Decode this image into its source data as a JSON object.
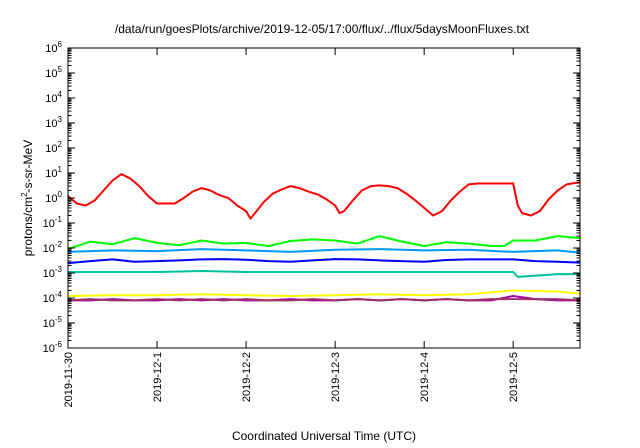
{
  "chart_data": {
    "type": "line",
    "title": "/data/run/goesPlots/archive/2019-12-05/17:00/flux/../flux/5daysMoonFluxes.txt",
    "xlabel": "Coordinated Universal Time (UTC)",
    "ylabel": "protons/cm²-s-sr-MeV",
    "ylabel_parts": [
      "protons/cm",
      "2",
      "-s-sr-MeV"
    ],
    "yscale": "log",
    "ylim": [
      1e-06,
      1000000.0
    ],
    "xlim": [
      0,
      5.75
    ],
    "x_units": "days since 2019-11-30 00:00 UTC",
    "grid": false,
    "y_ticks": [
      {
        "base": "10",
        "exp": "-6",
        "value": -6
      },
      {
        "base": "10",
        "exp": "-5",
        "value": -5
      },
      {
        "base": "10",
        "exp": "-4",
        "value": -4
      },
      {
        "base": "10",
        "exp": "-3",
        "value": -3
      },
      {
        "base": "10",
        "exp": "-2",
        "value": -2
      },
      {
        "base": "10",
        "exp": "-1",
        "value": -1
      },
      {
        "base": "10",
        "exp": "0",
        "value": 0
      },
      {
        "base": "10",
        "exp": "1",
        "value": 1
      },
      {
        "base": "10",
        "exp": "2",
        "value": 2
      },
      {
        "base": "10",
        "exp": "3",
        "value": 3
      },
      {
        "base": "10",
        "exp": "4",
        "value": 4
      },
      {
        "base": "10",
        "exp": "5",
        "value": 5
      },
      {
        "base": "10",
        "exp": "6",
        "value": 6
      }
    ],
    "x_ticks": [
      {
        "label": "2019-11-30",
        "value": 0
      },
      {
        "label": "2019-12-1",
        "value": 1
      },
      {
        "label": "2019-12-2",
        "value": 2
      },
      {
        "label": "2019-12-3",
        "value": 3
      },
      {
        "label": "2019-12-4",
        "value": 4
      },
      {
        "label": "2019-12-5",
        "value": 5
      }
    ],
    "series": [
      {
        "color": "#ff0000",
        "x": [
          0,
          0.1,
          0.2,
          0.3,
          0.4,
          0.5,
          0.6,
          0.7,
          0.8,
          0.9,
          1.0,
          1.1,
          1.2,
          1.3,
          1.4,
          1.5,
          1.6,
          1.7,
          1.8,
          1.9,
          2.0,
          2.05,
          2.1,
          2.2,
          2.3,
          2.4,
          2.5,
          2.6,
          2.7,
          2.8,
          2.9,
          3.0,
          3.05,
          3.1,
          3.2,
          3.3,
          3.4,
          3.5,
          3.6,
          3.7,
          3.8,
          3.9,
          4.0,
          4.1,
          4.2,
          4.3,
          4.4,
          4.5,
          4.6,
          4.7,
          4.8,
          4.9,
          5.0,
          5.05,
          5.1,
          5.2,
          5.3,
          5.4,
          5.5,
          5.6,
          5.7,
          5.75
        ],
        "y": [
          1.2,
          0.6,
          0.5,
          0.8,
          2,
          5,
          9,
          6,
          3,
          1.2,
          0.6,
          0.6,
          0.6,
          1,
          1.8,
          2.5,
          2,
          1.3,
          1,
          0.5,
          0.3,
          0.15,
          0.25,
          0.7,
          1.5,
          2.2,
          3,
          2.5,
          1.8,
          1.4,
          0.9,
          0.5,
          0.25,
          0.3,
          0.8,
          2,
          3,
          3.2,
          3,
          2.5,
          1.5,
          0.8,
          0.4,
          0.2,
          0.3,
          0.8,
          1.8,
          3.5,
          3.8,
          3.8,
          3.8,
          3.8,
          3.8,
          0.5,
          0.25,
          0.2,
          0.3,
          0.9,
          2,
          3.5,
          4,
          4.2
        ]
      },
      {
        "color": "#00ff00",
        "x": [
          0,
          0.25,
          0.5,
          0.75,
          1.0,
          1.25,
          1.5,
          1.75,
          2.0,
          2.25,
          2.5,
          2.75,
          3.0,
          3.25,
          3.5,
          3.75,
          4.0,
          4.25,
          4.5,
          4.75,
          4.9,
          5.0,
          5.25,
          5.5,
          5.75
        ],
        "y": [
          0.009,
          0.018,
          0.014,
          0.025,
          0.016,
          0.013,
          0.02,
          0.015,
          0.016,
          0.012,
          0.019,
          0.022,
          0.02,
          0.015,
          0.03,
          0.018,
          0.012,
          0.017,
          0.015,
          0.012,
          0.012,
          0.02,
          0.02,
          0.03,
          0.025
        ]
      },
      {
        "color": "#0099ff",
        "x": [
          0,
          0.5,
          1.0,
          1.5,
          2.0,
          2.5,
          3.0,
          3.5,
          4.0,
          4.5,
          5.0,
          5.5,
          5.75
        ],
        "y": [
          0.007,
          0.008,
          0.0075,
          0.009,
          0.008,
          0.007,
          0.0085,
          0.009,
          0.008,
          0.0085,
          0.007,
          0.008,
          0.0065
        ]
      },
      {
        "color": "#0000ff",
        "x": [
          0,
          0.25,
          0.5,
          0.75,
          1.0,
          1.25,
          1.5,
          1.75,
          2.0,
          2.25,
          2.5,
          2.75,
          3.0,
          3.25,
          3.5,
          3.75,
          4.0,
          4.25,
          4.5,
          4.75,
          5.0,
          5.25,
          5.5,
          5.75
        ],
        "y": [
          0.0025,
          0.003,
          0.0035,
          0.0028,
          0.003,
          0.0032,
          0.0035,
          0.0036,
          0.0034,
          0.003,
          0.0028,
          0.0032,
          0.0036,
          0.0035,
          0.0032,
          0.003,
          0.0028,
          0.0033,
          0.0035,
          0.0035,
          0.0035,
          0.003,
          0.0028,
          0.0026
        ]
      },
      {
        "color": "#00c0a0",
        "x": [
          0,
          0.5,
          1.0,
          1.5,
          2.0,
          2.5,
          3.0,
          3.5,
          4.0,
          4.5,
          5.0,
          5.05,
          5.5,
          5.75
        ],
        "y": [
          0.0011,
          0.0011,
          0.0011,
          0.0012,
          0.0011,
          0.0011,
          0.0011,
          0.0011,
          0.0011,
          0.0011,
          0.0011,
          0.0007,
          0.0009,
          0.0009
        ]
      },
      {
        "color": "#ffff00",
        "x": [
          0,
          0.5,
          1.0,
          1.5,
          2.0,
          2.5,
          3.0,
          3.5,
          4.0,
          4.5,
          5.0,
          5.5,
          5.75
        ],
        "y": [
          0.00012,
          0.00013,
          0.00013,
          0.00014,
          0.00013,
          0.00012,
          0.00013,
          0.00014,
          0.00013,
          0.00014,
          0.0002,
          0.00018,
          0.00015
        ]
      },
      {
        "color": "#aa00aa",
        "x": [
          0,
          0.25,
          0.5,
          0.75,
          1.0,
          1.25,
          1.5,
          1.75,
          2.0,
          2.25,
          2.5,
          2.75,
          3.0,
          3.25,
          3.5,
          3.75,
          4.0,
          4.25,
          4.5,
          4.75,
          5.0,
          5.25,
          5.5,
          5.75
        ],
        "y": [
          8e-05,
          8e-05,
          9e-05,
          8e-05,
          8e-05,
          9e-05,
          8e-05,
          9e-05,
          8e-05,
          8e-05,
          9e-05,
          8e-05,
          8e-05,
          9e-05,
          8e-05,
          9e-05,
          8e-05,
          9e-05,
          8e-05,
          8e-05,
          0.00012,
          9e-05,
          8e-05,
          8e-05
        ]
      },
      {
        "color": "#993366",
        "x": [
          0,
          0.25,
          0.5,
          0.75,
          1.0,
          1.25,
          1.5,
          1.75,
          2.0,
          2.25,
          2.5,
          2.75,
          3.0,
          3.25,
          3.5,
          3.75,
          4.0,
          4.25,
          4.5,
          4.75,
          5.0,
          5.25,
          5.5,
          5.75
        ],
        "y": [
          8e-05,
          9e-05,
          8e-05,
          8e-05,
          9e-05,
          8e-05,
          9e-05,
          8e-05,
          9e-05,
          8e-05,
          8e-05,
          9e-05,
          8e-05,
          9e-05,
          8e-05,
          9e-05,
          8e-05,
          9e-05,
          8e-05,
          9e-05,
          9e-05,
          9e-05,
          9e-05,
          8e-05
        ]
      }
    ]
  }
}
